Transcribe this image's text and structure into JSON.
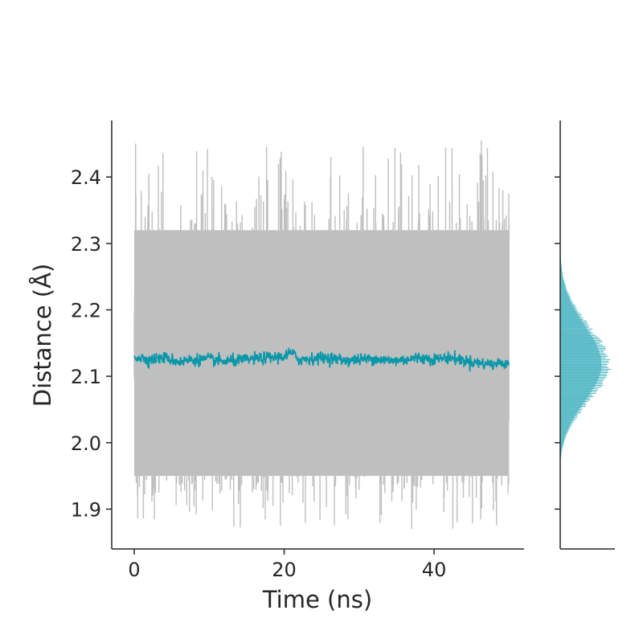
{
  "chart_data": {
    "type": "line",
    "xlabel": "Time (ns)",
    "ylabel": "Distance (Å)",
    "xlim": [
      -3,
      52
    ],
    "ylim": [
      1.84,
      2.485
    ],
    "xticks": [
      0,
      20,
      40
    ],
    "xtick_labels": [
      "0",
      "20",
      "40"
    ],
    "yticks": [
      1.9,
      2.0,
      2.1,
      2.2,
      2.3,
      2.4
    ],
    "ytick_labels": [
      "1.9",
      "2.0",
      "2.1",
      "2.2",
      "2.3",
      "2.4"
    ],
    "grid": false,
    "series": [
      {
        "role": "raw",
        "color": "#bfbfbf",
        "x_range": [
          0,
          50
        ],
        "band": [
          1.94,
          2.33
        ],
        "mean": 2.125,
        "max_excursion": [
          1.87,
          2.455
        ]
      },
      {
        "role": "smoothed",
        "color": "#0a97a9",
        "x": [
          0,
          2,
          4,
          6,
          8,
          10,
          12,
          14,
          16,
          18,
          20,
          21,
          22,
          24,
          26,
          28,
          30,
          32,
          34,
          36,
          38,
          40,
          42,
          44,
          46,
          48,
          50
        ],
        "y": [
          2.13,
          2.125,
          2.128,
          2.122,
          2.125,
          2.126,
          2.122,
          2.124,
          2.126,
          2.128,
          2.13,
          2.135,
          2.125,
          2.127,
          2.128,
          2.124,
          2.125,
          2.127,
          2.123,
          2.125,
          2.128,
          2.126,
          2.128,
          2.124,
          2.12,
          2.118,
          2.122
        ]
      }
    ],
    "marginal_histogram": {
      "orientation": "horizontal",
      "color": "#55b9c6",
      "bin_centers": [
        1.99,
        2.01,
        2.03,
        2.05,
        2.07,
        2.09,
        2.11,
        2.13,
        2.15,
        2.17,
        2.19,
        2.21,
        2.23,
        2.25,
        2.27
      ],
      "density": [
        0.04,
        0.12,
        0.26,
        0.45,
        0.68,
        0.88,
        1.0,
        0.98,
        0.86,
        0.66,
        0.45,
        0.27,
        0.14,
        0.06,
        0.02
      ]
    }
  }
}
